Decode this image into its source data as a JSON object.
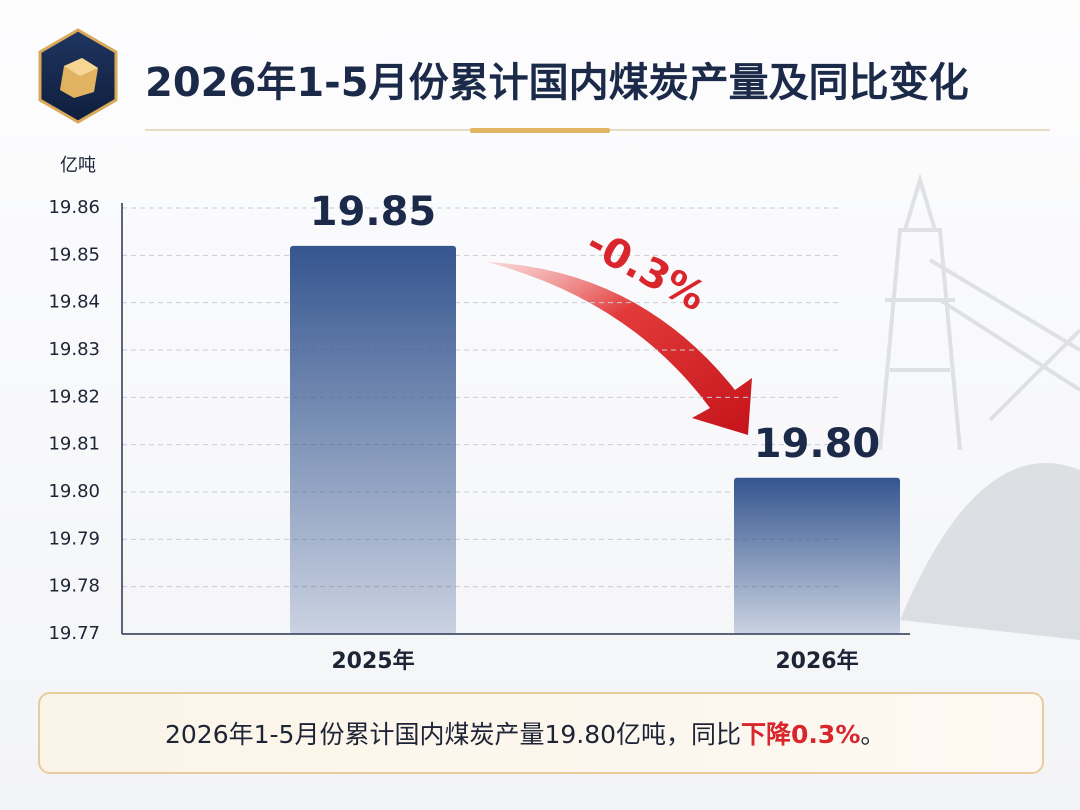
{
  "chart_data": {
    "type": "bar",
    "title": "2026年1-5月份累计国内煤炭产量及同比变化",
    "y_label": "亿吨",
    "categories": [
      "2025年",
      "2026年"
    ],
    "values": [
      19.852,
      19.803
    ],
    "value_labels": [
      "19.85",
      "19.80"
    ],
    "color": "#34558f",
    "ylim": [
      19.77,
      19.86
    ],
    "yticks": [
      19.77,
      19.78,
      19.79,
      {
        "value": 19.8,
        "label": "19.80"
      },
      19.81,
      19.82,
      19.83,
      19.84,
      19.85,
      19.86
    ],
    "grid": true,
    "annotation": "-0.3%",
    "annotation_color": "#d9262c",
    "note": [
      "2026年1-5月份累计国内煤炭产量19.80亿吨，同比",
      "下降0.3%",
      "。"
    ]
  }
}
